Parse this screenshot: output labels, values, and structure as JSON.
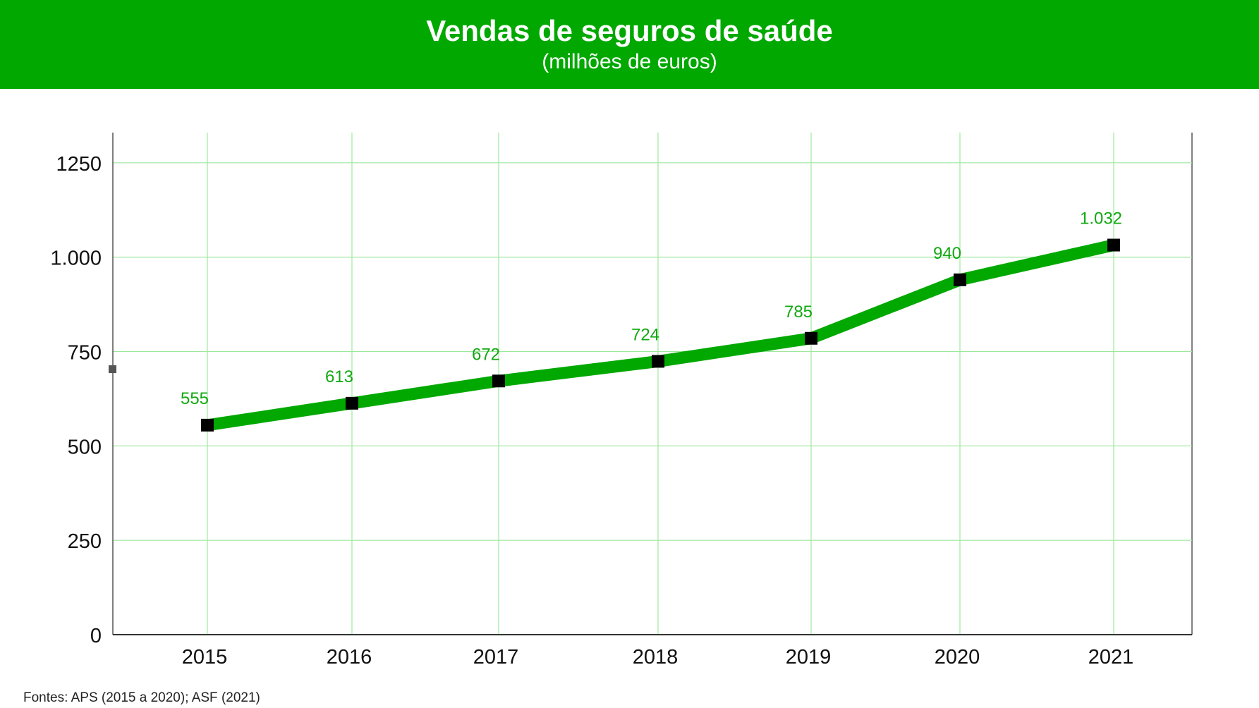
{
  "header": {
    "title": "Vendas de seguros de saúde",
    "subtitle": "(milhões de euros)"
  },
  "footer": {
    "source": "Fontes: APS (2015 a 2020); ASF (2021)"
  },
  "colors": {
    "accent": "#00a800",
    "line": "#00a800",
    "grid": "#9ee89e",
    "marker": "#000000",
    "data_label": "#12a812"
  },
  "chart_data": {
    "type": "line",
    "title": "Vendas de seguros de saúde",
    "subtitle": "(milhões de euros)",
    "xlabel": "",
    "ylabel": "",
    "categories": [
      "2015",
      "2016",
      "2017",
      "2018",
      "2019",
      "2020",
      "2021"
    ],
    "series": [
      {
        "values": [
          555,
          613,
          672,
          724,
          785,
          940,
          1032
        ],
        "labels": [
          "555",
          "613",
          "672",
          "724",
          "785",
          "940",
          "1.032"
        ]
      }
    ],
    "ylim": [
      0,
      1330
    ],
    "y_ticks": [
      0,
      250,
      500,
      750,
      1000,
      1250
    ],
    "y_tick_labels": [
      "0",
      "250",
      "500",
      "750",
      "1.000",
      "1250"
    ],
    "grid": true,
    "legend": "none"
  }
}
